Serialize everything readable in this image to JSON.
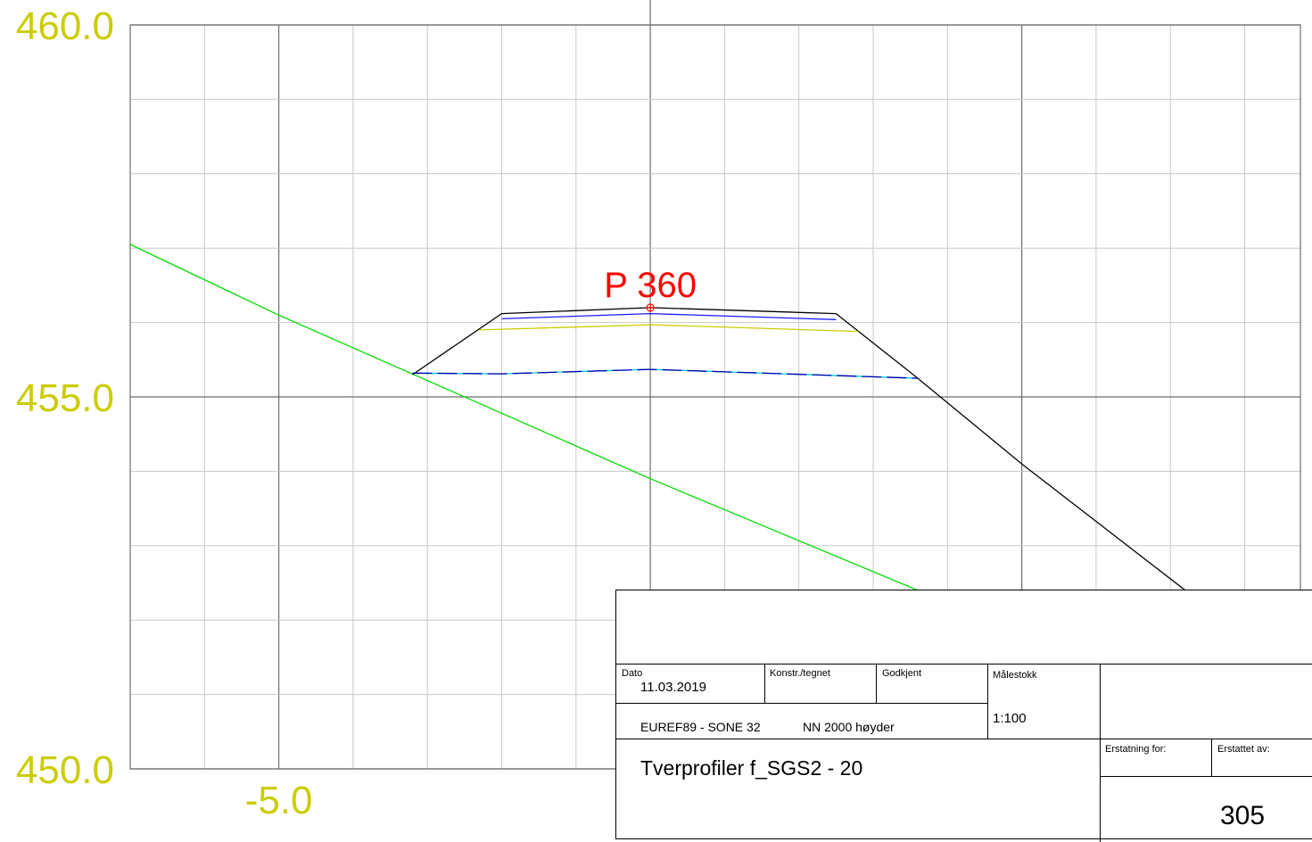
{
  "chart_data": {
    "type": "line",
    "title": "",
    "xlabel": "",
    "ylabel": "",
    "xlim": [
      -7.0,
      8.75
    ],
    "ylim": [
      450.0,
      460.0
    ],
    "y_tick_labels": [
      "460.0",
      "455.0",
      "450.0"
    ],
    "x_tick_labels": [
      "-5.0"
    ],
    "grid": true,
    "marker": {
      "label": "P 360",
      "x": 0.0,
      "y": 456.2
    },
    "series": [
      {
        "color": "#00dd00",
        "style": "solid",
        "points": [
          [
            -7.0,
            457.05
          ],
          [
            -5.0,
            456.1
          ],
          [
            0.0,
            453.9
          ],
          [
            3.6,
            452.4
          ]
        ]
      },
      {
        "color": "#000000",
        "style": "solid",
        "points": [
          [
            -3.2,
            455.3
          ],
          [
            -2.0,
            456.12
          ],
          [
            0.0,
            456.2
          ],
          [
            2.5,
            456.12
          ],
          [
            3.6,
            455.25
          ],
          [
            5.0,
            454.1
          ],
          [
            7.2,
            452.4
          ]
        ]
      },
      {
        "color": "#1a1aff",
        "style": "solid",
        "points": [
          [
            -2.0,
            456.05
          ],
          [
            0.0,
            456.12
          ],
          [
            2.5,
            456.04
          ]
        ]
      },
      {
        "color": "#cccc00",
        "style": "solid",
        "points": [
          [
            -2.3,
            455.9
          ],
          [
            0.0,
            455.97
          ],
          [
            2.8,
            455.88
          ]
        ]
      },
      {
        "color": "#00d0e0",
        "style": "solid",
        "points": [
          [
            -3.2,
            455.32
          ],
          [
            -2.0,
            455.31
          ],
          [
            0.0,
            455.37
          ],
          [
            3.6,
            455.25
          ]
        ]
      },
      {
        "color": "#0000aa",
        "style": "dashed",
        "points": [
          [
            -3.2,
            455.32
          ],
          [
            -2.0,
            455.31
          ],
          [
            0.0,
            455.37
          ],
          [
            3.6,
            455.25
          ]
        ]
      }
    ],
    "colors": {
      "grid": "#c8c8c8",
      "major_grid": "#6e6e6e",
      "axis_labels": "#cccc00"
    }
  },
  "title_block": {
    "dato_label": "Dato",
    "dato_value": "11.03.2019",
    "konstr_label": "Konstr./tegnet",
    "godkjent_label": "Godkjent",
    "malestokk_label": "Målestokk",
    "malestokk_value": "1:100",
    "coord_system": "EUREF89 - SONE 32",
    "height_system": "NN 2000 høyder",
    "erstatning_label": "Erstatning for:",
    "erstattet_label": "Erstattet av:",
    "title": "Tverprofiler f_SGS2 - 20",
    "drawing_number": "305"
  }
}
